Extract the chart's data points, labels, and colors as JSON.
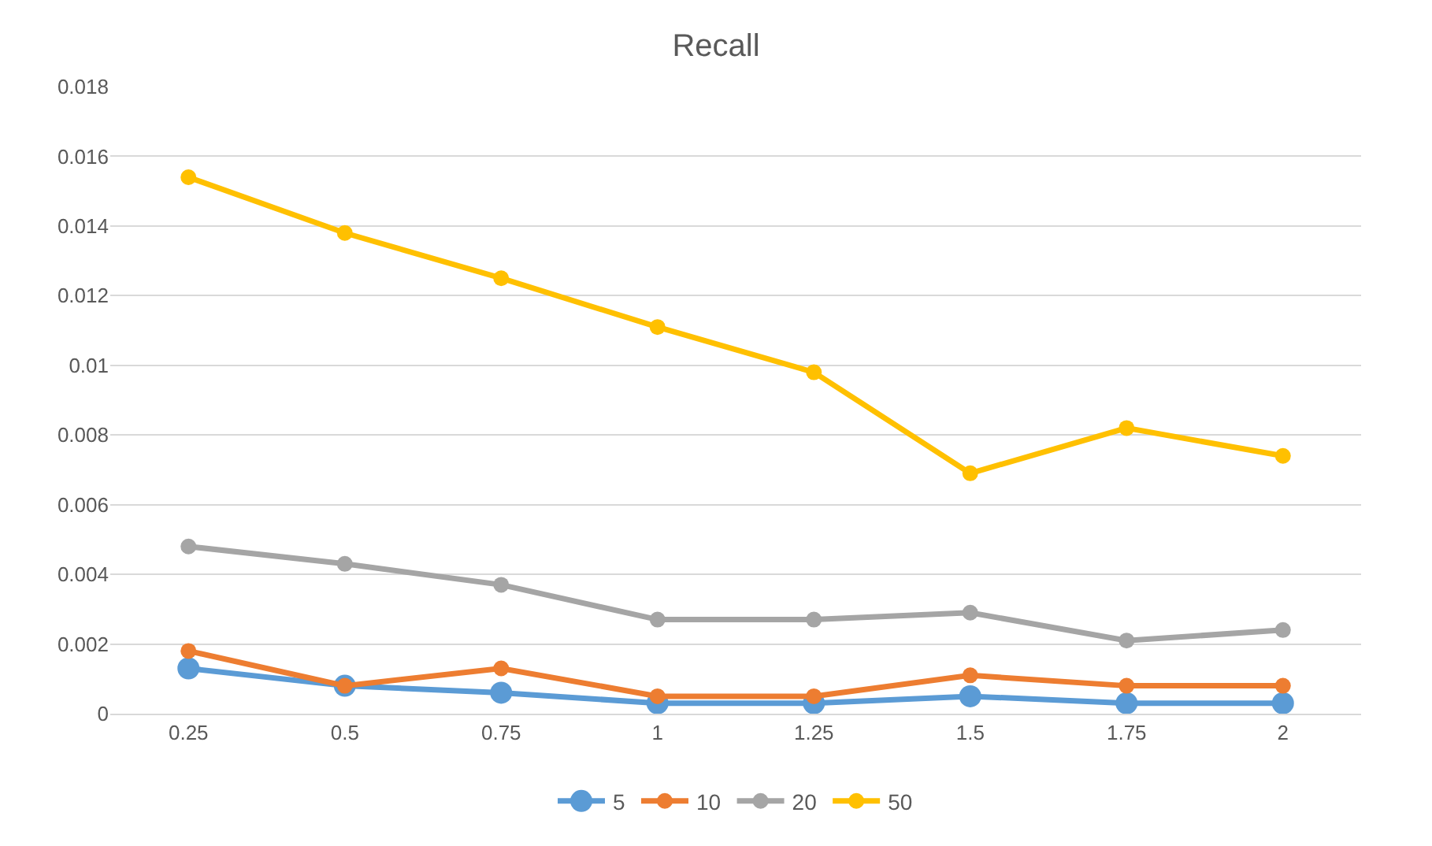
{
  "chart_data": {
    "type": "line",
    "title": "Recall",
    "categories": [
      "0.25",
      "0.5",
      "0.75",
      "1",
      "1.25",
      "1.5",
      "1.75",
      "2"
    ],
    "series": [
      {
        "name": "5",
        "color": "#5b9bd5",
        "values": [
          0.0013,
          0.0008,
          0.0006,
          0.0003,
          0.0003,
          0.0005,
          0.0003,
          0.0003
        ]
      },
      {
        "name": "10",
        "color": "#ed7d31",
        "values": [
          0.0018,
          0.0008,
          0.0013,
          0.0005,
          0.0005,
          0.0011,
          0.0008,
          0.0008
        ]
      },
      {
        "name": "20",
        "color": "#a5a5a5",
        "values": [
          0.0048,
          0.0043,
          0.0037,
          0.0027,
          0.0027,
          0.0029,
          0.0021,
          0.0024
        ]
      },
      {
        "name": "50",
        "color": "#ffc000",
        "values": [
          0.0154,
          0.0138,
          0.0125,
          0.0111,
          0.0098,
          0.0069,
          0.0082,
          0.0074
        ]
      }
    ],
    "ylim": [
      0,
      0.018
    ],
    "yticks": [
      0,
      0.002,
      0.004,
      0.006,
      0.008,
      0.01,
      0.012,
      0.014,
      0.016,
      0.018
    ],
    "grid": "y",
    "legend": "bottom",
    "marker": "circle",
    "line_style": "solid"
  }
}
